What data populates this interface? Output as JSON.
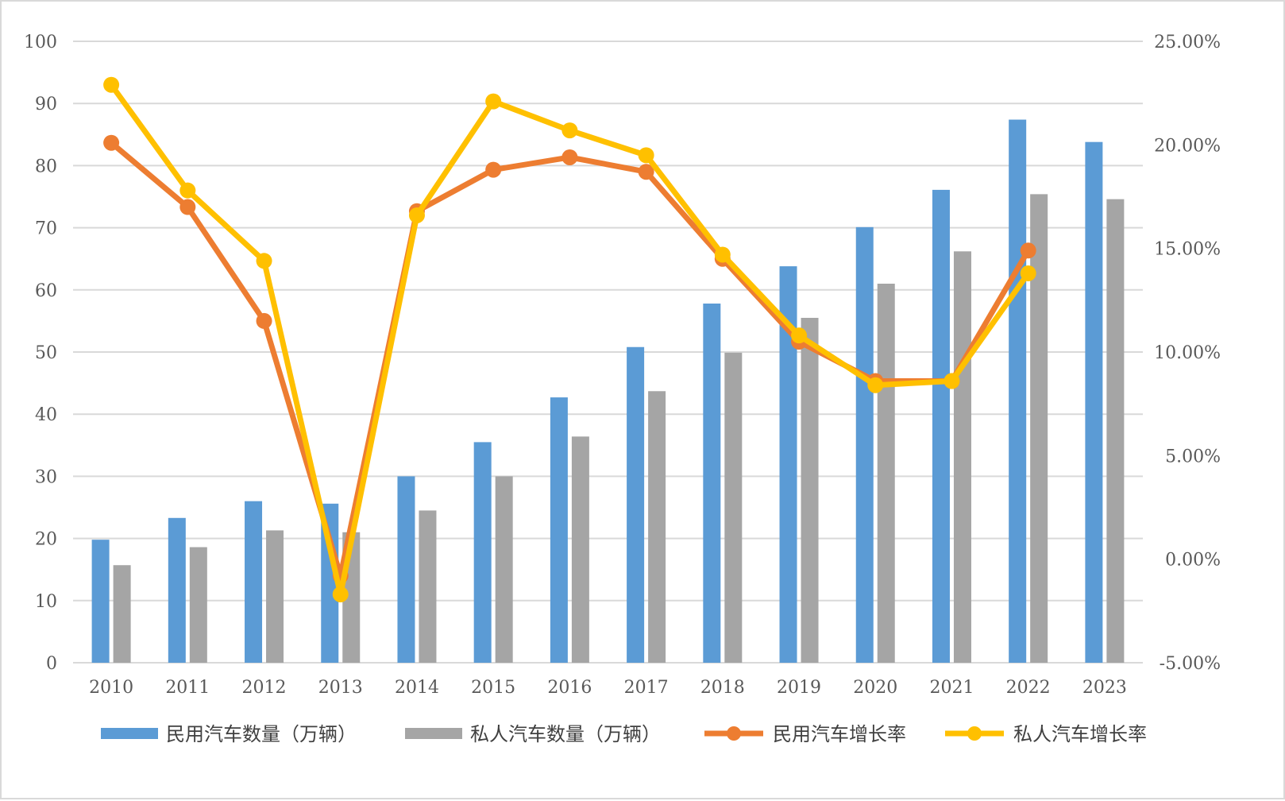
{
  "chart_data": {
    "type": "bar+line",
    "title": "",
    "xlabel": "",
    "ylabel": "",
    "categories": [
      "2010",
      "2011",
      "2012",
      "2013",
      "2014",
      "2015",
      "2016",
      "2017",
      "2018",
      "2019",
      "2020",
      "2021",
      "2022",
      "2023"
    ],
    "left_axis": {
      "min": 0,
      "max": 100,
      "step": 10,
      "tick_labels": [
        "0",
        "10",
        "20",
        "30",
        "40",
        "50",
        "60",
        "70",
        "80",
        "90",
        "100"
      ]
    },
    "right_axis": {
      "min": -5,
      "max": 25,
      "step": 5,
      "tick_labels": [
        "-5.00%",
        "0.00%",
        "5.00%",
        "10.00%",
        "15.00%",
        "20.00%",
        "25.00%"
      ]
    },
    "grid": true,
    "legend_position": "bottom",
    "bar_series": [
      {
        "name": "民用汽车数量（万辆）",
        "color": "#5b9bd5",
        "axis": "left",
        "values": [
          19.8,
          23.3,
          26.0,
          25.6,
          30.0,
          35.5,
          42.7,
          50.8,
          57.8,
          63.8,
          70.1,
          76.1,
          87.4,
          83.8
        ]
      },
      {
        "name": "私人汽车数量（万辆）",
        "color": "#a5a5a5",
        "axis": "left",
        "values": [
          15.7,
          18.6,
          21.3,
          21.0,
          24.5,
          30.0,
          36.4,
          43.7,
          49.9,
          55.5,
          61.0,
          66.2,
          75.4,
          74.6
        ]
      }
    ],
    "line_series": [
      {
        "name": "民用汽车增长率",
        "color": "#ed7d31",
        "axis": "right",
        "values": [
          20.1,
          17.0,
          11.5,
          -0.8,
          16.8,
          18.8,
          19.4,
          18.7,
          14.5,
          10.5,
          8.6,
          8.6,
          14.9,
          null
        ]
      },
      {
        "name": "私人汽车增长率",
        "color": "#ffc000",
        "axis": "right",
        "values": [
          22.9,
          17.8,
          14.4,
          -1.7,
          16.6,
          22.1,
          20.7,
          19.5,
          14.7,
          10.8,
          8.4,
          8.6,
          13.8,
          null
        ]
      }
    ]
  }
}
